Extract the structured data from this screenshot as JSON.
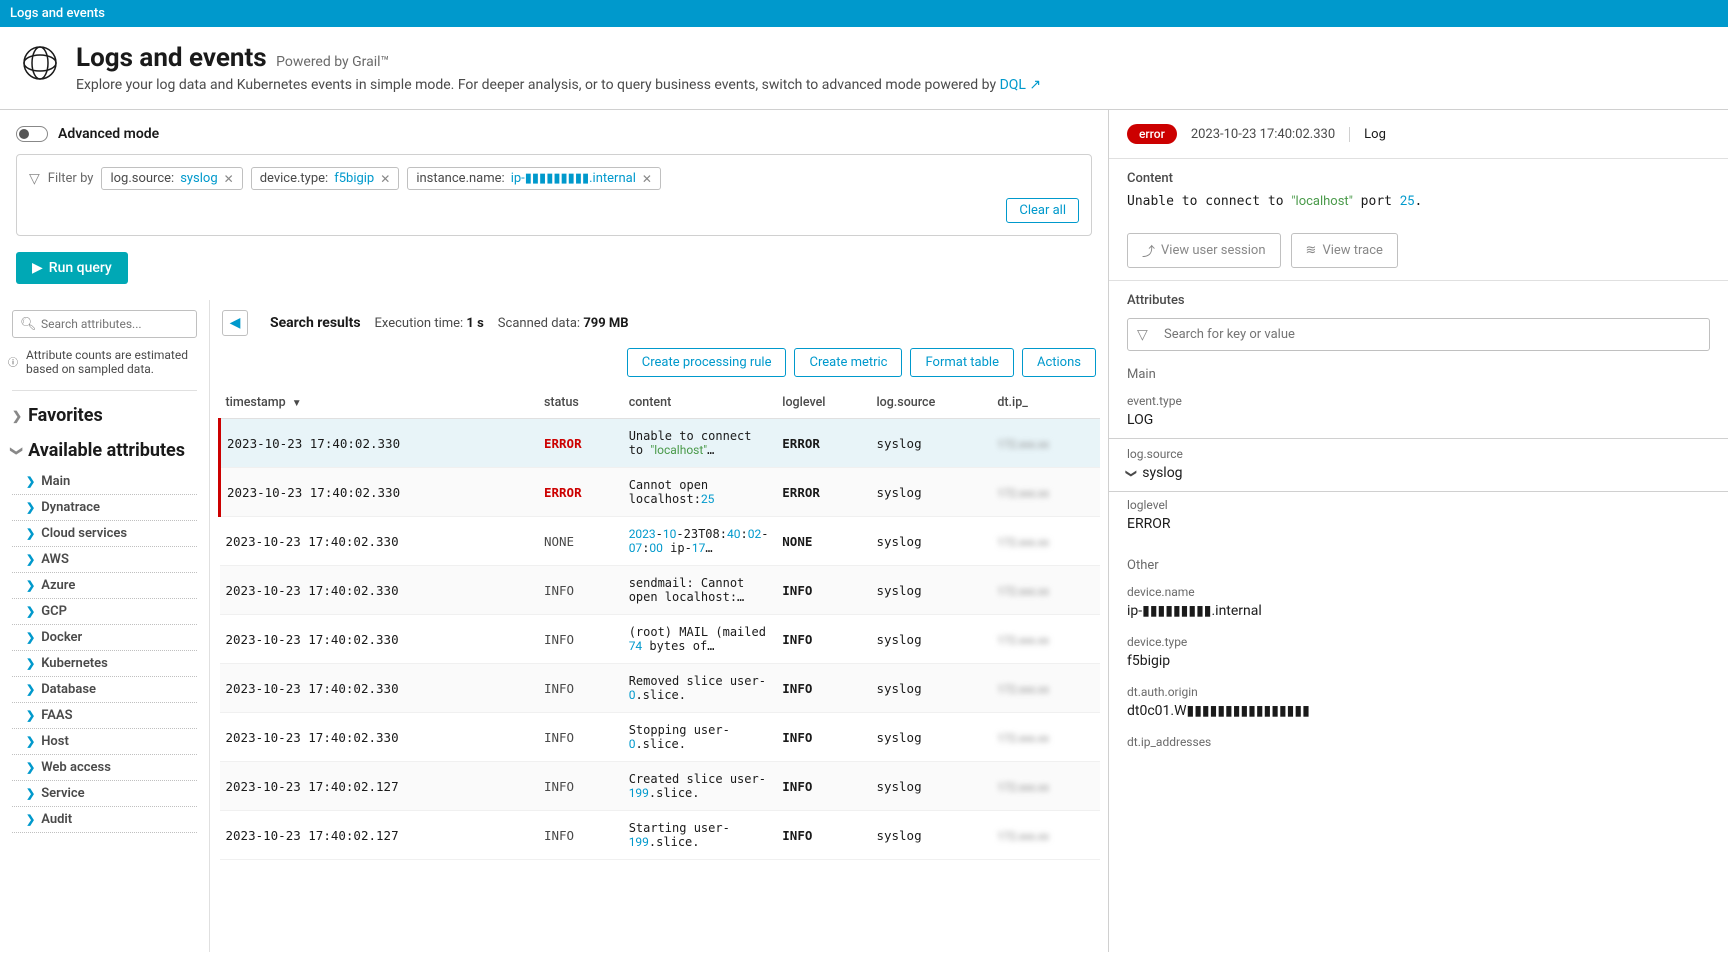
{
  "top_bar": "Logs and events",
  "header": {
    "title": "Logs and events",
    "subtitle": "Powered by Grail™",
    "desc": "Explore your log data and Kubernetes events in simple mode. For deeper analysis, or to query business events, switch to advanced mode powered by ",
    "link": "DQL"
  },
  "query": {
    "advanced_label": "Advanced mode",
    "filter_label": "Filter by",
    "chips": [
      {
        "key": "log.source:",
        "val": "syslog"
      },
      {
        "key": "device.type:",
        "val": "f5bigip"
      },
      {
        "key": "instance.name:",
        "val": "ip-▮▮▮▮▮▮▮▮▮.internal"
      }
    ],
    "clear": "Clear all",
    "run": "Run query"
  },
  "sidebar": {
    "search_placeholder": "Search attributes...",
    "hint": "Attribute counts are estimated based on sampled data.",
    "favorites": "Favorites",
    "available": "Available attributes",
    "items": [
      "Main",
      "Dynatrace",
      "Cloud services",
      "AWS",
      "Azure",
      "GCP",
      "Docker",
      "Kubernetes",
      "Database",
      "FAAS",
      "Host",
      "Web access",
      "Service",
      "Audit"
    ]
  },
  "results": {
    "label": "Search results",
    "exec_label": "Execution time:",
    "exec_val": "1 s",
    "scan_label": "Scanned data:",
    "scan_val": "799 MB",
    "actions": [
      "Create processing rule",
      "Create metric",
      "Format table",
      "Actions"
    ],
    "columns": [
      "timestamp",
      "status",
      "content",
      "loglevel",
      "log.source",
      "dt.ip_"
    ],
    "rows": [
      {
        "ts": "2023-10-23 17:40:02.330",
        "status": "ERROR",
        "content": "Unable to connect to \"localhost\"…",
        "loglevel": "ERROR",
        "source": "syslog",
        "error": true,
        "selected": true
      },
      {
        "ts": "2023-10-23 17:40:02.330",
        "status": "ERROR",
        "content": "Cannot open localhost:25",
        "loglevel": "ERROR",
        "source": "syslog",
        "error": true
      },
      {
        "ts": "2023-10-23 17:40:02.330",
        "status": "NONE",
        "content": "2023-10-23T08:40:02-07:00 ip-17…",
        "loglevel": "NONE",
        "source": "syslog"
      },
      {
        "ts": "2023-10-23 17:40:02.330",
        "status": "INFO",
        "content": "sendmail: Cannot open localhost:…",
        "loglevel": "INFO",
        "source": "syslog"
      },
      {
        "ts": "2023-10-23 17:40:02.330",
        "status": "INFO",
        "content": "(root) MAIL (mailed 74 bytes of…",
        "loglevel": "INFO",
        "source": "syslog"
      },
      {
        "ts": "2023-10-23 17:40:02.330",
        "status": "INFO",
        "content": "Removed slice user-0.slice.",
        "loglevel": "INFO",
        "source": "syslog"
      },
      {
        "ts": "2023-10-23 17:40:02.330",
        "status": "INFO",
        "content": "Stopping user-0.slice.",
        "loglevel": "INFO",
        "source": "syslog"
      },
      {
        "ts": "2023-10-23 17:40:02.127",
        "status": "INFO",
        "content": "Created slice user-199.slice.",
        "loglevel": "INFO",
        "source": "syslog"
      },
      {
        "ts": "2023-10-23 17:40:02.127",
        "status": "INFO",
        "content": "Starting user-199.slice.",
        "loglevel": "INFO",
        "source": "syslog"
      }
    ]
  },
  "detail": {
    "badge": "error",
    "ts": "2023-10-23 17:40:02.330",
    "type": "Log",
    "content_label": "Content",
    "content": "Unable to connect to \"localhost\" port 25.",
    "view_user": "View user session",
    "view_trace": "View trace",
    "attributes_label": "Attributes",
    "attr_search_placeholder": "Search for key or value",
    "main_label": "Main",
    "other_label": "Other",
    "kv": {
      "event_type_k": "event.type",
      "event_type_v": "LOG",
      "log_source_k": "log.source",
      "log_source_v": "syslog",
      "loglevel_k": "loglevel",
      "loglevel_v": "ERROR",
      "device_name_k": "device.name",
      "device_name_v": "ip-▮▮▮▮▮▮▮▮▮.internal",
      "device_type_k": "device.type",
      "device_type_v": "f5bigip",
      "auth_k": "dt.auth.origin",
      "auth_v": "dt0c01.W▮▮▮▮▮▮▮▮▮▮▮▮▮▮▮▮",
      "ip_k": "dt.ip_addresses"
    }
  }
}
